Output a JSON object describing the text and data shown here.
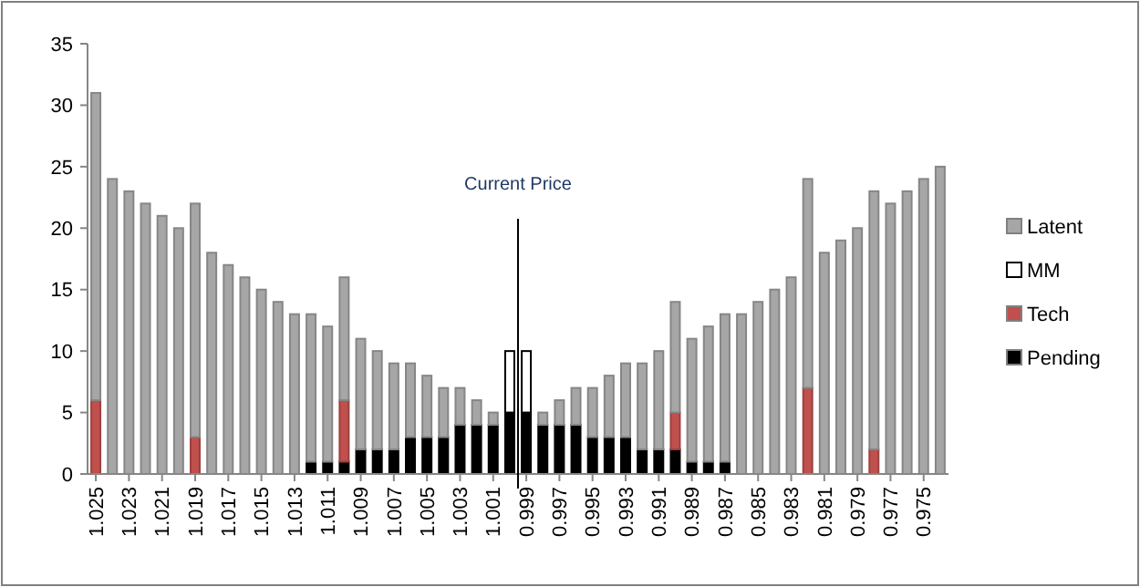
{
  "chart_data": {
    "type": "bar",
    "stacked": true,
    "x": [
      1.025,
      1.024,
      1.023,
      1.022,
      1.021,
      1.02,
      1.019,
      1.018,
      1.017,
      1.016,
      1.015,
      1.014,
      1.013,
      1.012,
      1.011,
      1.01,
      1.009,
      1.008,
      1.007,
      1.006,
      1.005,
      1.004,
      1.003,
      1.002,
      1.001,
      1.0,
      0.999,
      0.998,
      0.997,
      0.996,
      0.995,
      0.994,
      0.993,
      0.992,
      0.991,
      0.99,
      0.989,
      0.988,
      0.987,
      0.986,
      0.985,
      0.984,
      0.983,
      0.982,
      0.981,
      0.98,
      0.979,
      0.978,
      0.977,
      0.976,
      0.975,
      0.974
    ],
    "xlim": [
      1.0255,
      0.9735
    ],
    "xticks": [
      1.025,
      1.023,
      1.021,
      1.019,
      1.017,
      1.015,
      1.013,
      1.011,
      1.009,
      1.007,
      1.005,
      1.003,
      1.001,
      0.999,
      0.997,
      0.995,
      0.993,
      0.991,
      0.989,
      0.987,
      0.985,
      0.983,
      0.981,
      0.979,
      0.977,
      0.975
    ],
    "ylim": [
      0,
      35
    ],
    "yticks": [
      0,
      5,
      10,
      15,
      20,
      25,
      30,
      35
    ],
    "series": [
      {
        "name": "Pending",
        "color": "#000000",
        "values": [
          0,
          0,
          0,
          0,
          0,
          0,
          0,
          0,
          0,
          0,
          0,
          0,
          0,
          1,
          1,
          1,
          2,
          2,
          2,
          3,
          3,
          3,
          4,
          4,
          4,
          5,
          5,
          4,
          4,
          4,
          3,
          3,
          3,
          2,
          2,
          2,
          1,
          1,
          1,
          0,
          0,
          0,
          0,
          0,
          0,
          0,
          0,
          0,
          0,
          0,
          0,
          0
        ]
      },
      {
        "name": "Tech",
        "color": "#c0504d",
        "values": [
          6,
          0,
          0,
          0,
          0,
          0,
          3,
          0,
          0,
          0,
          0,
          0,
          0,
          0,
          0,
          5,
          0,
          0,
          0,
          0,
          0,
          0,
          0,
          0,
          0,
          0,
          0,
          0,
          0,
          0,
          0,
          0,
          0,
          0,
          0,
          3,
          0,
          0,
          0,
          0,
          0,
          0,
          0,
          7,
          0,
          0,
          0,
          2,
          0,
          0,
          0,
          0
        ]
      },
      {
        "name": "MM",
        "color": "#ffffff",
        "values": [
          0,
          0,
          0,
          0,
          0,
          0,
          0,
          0,
          0,
          0,
          0,
          0,
          0,
          0,
          0,
          0,
          0,
          0,
          0,
          0,
          0,
          0,
          0,
          0,
          0,
          5,
          5,
          0,
          0,
          0,
          0,
          0,
          0,
          0,
          0,
          0,
          0,
          0,
          0,
          0,
          0,
          0,
          0,
          0,
          0,
          0,
          0,
          0,
          0,
          0,
          0,
          0
        ]
      },
      {
        "name": "Latent",
        "color": "#a6a6a6",
        "values": [
          25,
          24,
          23,
          22,
          21,
          20,
          19,
          18,
          17,
          16,
          15,
          14,
          13,
          12,
          11,
          10,
          9,
          8,
          7,
          6,
          5,
          4,
          3,
          2,
          1,
          0,
          0,
          1,
          2,
          3,
          4,
          5,
          6,
          7,
          8,
          9,
          10,
          11,
          12,
          13,
          14,
          15,
          16,
          17,
          18,
          19,
          20,
          21,
          22,
          23,
          24,
          25
        ]
      }
    ],
    "ref_lines": [
      {
        "axis": "x",
        "value": 0.9995,
        "label": "Current Price",
        "color": "#000000"
      }
    ],
    "legend": "right"
  }
}
